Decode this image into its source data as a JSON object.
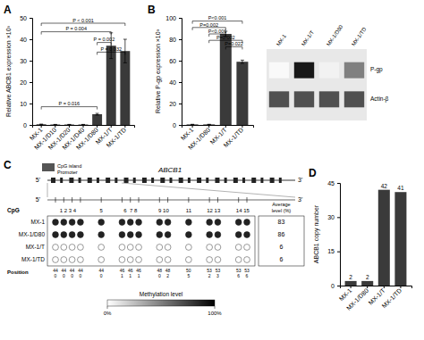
{
  "chart_data": [
    {
      "type": "bar",
      "title": "A",
      "categories": [
        "MX-1",
        "MX-1/D10",
        "MX-1/D20",
        "MX-1/D40",
        "MX-1/D80",
        "MX-1/T",
        "MX-1/TD"
      ],
      "values": [
        0.3,
        0.2,
        0.2,
        0.2,
        5.0,
        37.0,
        34.5
      ],
      "errors": [
        0.1,
        0.05,
        0.05,
        0.05,
        0.4,
        6.0,
        5.5
      ],
      "ylabel": "Relative ABCB1 expression ×10³",
      "ylim": [
        0,
        50
      ],
      "yticks": [
        0,
        10,
        20,
        30,
        40,
        50
      ],
      "color": "#3a3a3a",
      "annotations": [
        {
          "from": "MX-1",
          "to": "MX-1/TD",
          "y": 47.5,
          "text": "P < 0.001"
        },
        {
          "from": "MX-1",
          "to": "MX-1/T",
          "y": 43.5,
          "text": "P = 0.004"
        },
        {
          "from": "MX-1/D80",
          "to": "MX-1/T",
          "y": 38.5,
          "text": "P = 0.002"
        },
        {
          "from": "MX-1/D80",
          "to": "MX-1/TD",
          "y": 34.0,
          "text": "P = 0.032"
        },
        {
          "from": "MX-1",
          "to": "MX-1/D80",
          "y": 8.5,
          "text": "P = 0.016"
        }
      ]
    },
    {
      "type": "bar",
      "title": "B",
      "categories": [
        "MX-1",
        "MX-1/D80",
        "MX-1/T",
        "MX-1/TD"
      ],
      "values": [
        0.5,
        0.5,
        85.0,
        59.0
      ],
      "errors": [
        0.1,
        0.1,
        2.5,
        1.5
      ],
      "ylabel": "Relative P-gp expression ×10³",
      "ylim": [
        0,
        100
      ],
      "yticks": [
        0,
        20,
        40,
        60,
        80,
        100
      ],
      "color": "#3a3a3a",
      "annotations": [
        {
          "from": "MX-1",
          "to": "MX-1/TD",
          "y": 97,
          "text": "P<0.001"
        },
        {
          "from": "MX-1",
          "to": "MX-1/T",
          "y": 91,
          "text": "P=0.002"
        },
        {
          "from": "MX-1/D80",
          "to": "MX-1/T",
          "y": 85,
          "text": "P<0.001"
        },
        {
          "from": "MX-1/D80",
          "to": "MX-1/TD",
          "y": 79,
          "text": "P=0.002"
        },
        {
          "from": "MX-1/T",
          "to": "MX-1/TD",
          "y": 73,
          "text": "P=0.022"
        }
      ]
    },
    {
      "type": "blot",
      "categories": [
        "MX-1",
        "MX-1/T",
        "MX-1/D80",
        "MX-1/TD"
      ],
      "series": [
        {
          "name": "P-gp",
          "values": [
            0.05,
            0.92,
            0.1,
            0.58
          ]
        },
        {
          "name": "Actin-β",
          "values": [
            0.75,
            0.75,
            0.75,
            0.75
          ]
        }
      ]
    },
    {
      "type": "methylation",
      "title": "C",
      "gene": "ABCB1",
      "promoter_labels": [
        "CpG island",
        "Promoter"
      ],
      "ends": [
        "5'",
        "3'"
      ],
      "cpg_header": "CpG",
      "cpg_groups": [
        [
          1,
          2,
          3,
          4
        ],
        [
          5
        ],
        [
          6,
          7,
          8
        ],
        [
          9,
          10
        ],
        [
          11
        ],
        [
          12,
          13
        ],
        [
          14,
          15
        ]
      ],
      "cpg_group_labels": [
        "1 2 3 4",
        "5",
        "6  7 8",
        "9 10",
        "11",
        "12 13",
        "14 15"
      ],
      "rows": [
        "MX-1",
        "MX-1/D80",
        "MX-1/T",
        "MX-1/TD"
      ],
      "filled": [
        [
          1,
          1,
          1,
          1,
          1,
          1,
          1,
          1,
          1,
          1,
          1,
          1,
          1,
          1,
          1
        ],
        [
          1,
          1,
          1,
          1,
          1,
          1,
          1,
          1,
          1,
          1,
          1,
          1,
          1,
          1,
          1
        ],
        [
          0,
          0,
          0,
          0,
          0,
          0,
          0,
          0,
          0,
          0,
          0,
          0,
          0,
          0,
          0
        ],
        [
          0,
          0,
          0,
          0,
          0,
          0,
          0,
          0,
          0,
          0,
          0,
          0,
          0,
          0,
          0
        ]
      ],
      "avg_header": "Average\nlevel (%)",
      "avg_levels": [
        83,
        86,
        6,
        6
      ],
      "position_header": "Position",
      "position_labels": [
        "44\n0",
        "44\n0",
        "44\n0",
        "44\n0",
        "44\n0",
        "46\n1",
        "46\n1",
        "46\n1",
        "48\n0",
        "48\n2",
        "50\n5",
        "53\n2",
        "53\n3",
        "53\n6",
        "53\n6"
      ],
      "colorbar": {
        "label": "Methylation level",
        "range": [
          0,
          100
        ],
        "ticks": [
          {
            "value": 0,
            "label": "0%"
          },
          {
            "value": 100,
            "label": "100%"
          }
        ]
      }
    },
    {
      "type": "bar",
      "title": "D",
      "categories": [
        "MX-1",
        "MX-1/D80",
        "MX-1/T",
        "MX-1/TD"
      ],
      "values": [
        2,
        2,
        42,
        41
      ],
      "ylabel": "ABCB1 copy number",
      "ylim": [
        0,
        45
      ],
      "yticks": [
        0,
        15,
        30,
        45
      ],
      "color": "#3a3a3a",
      "data_labels": true
    }
  ]
}
